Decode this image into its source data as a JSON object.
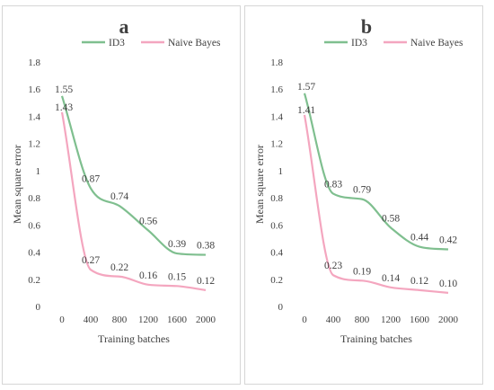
{
  "chart_data": [
    {
      "type": "line",
      "title": "a",
      "xlabel": "Training batches",
      "ylabel": "Mean square error",
      "x": [
        0,
        400,
        800,
        1200,
        1600,
        2000
      ],
      "x_ticks": [
        "0",
        "400",
        "800",
        "1200",
        "1600",
        "2000"
      ],
      "y_ticks": [
        "0",
        "0.2",
        "0.4",
        "0.6",
        "0.8",
        "1",
        "1.2",
        "1.4",
        "1.6",
        "1.8"
      ],
      "ylim": [
        0,
        1.8
      ],
      "grid": false,
      "legend_position": "top",
      "series": [
        {
          "name": "ID3",
          "color": "#7fbf8f",
          "values": [
            1.55,
            0.87,
            0.74,
            0.56,
            0.39,
            0.38
          ],
          "labels": [
            "1.55",
            "0.87",
            "0.74",
            "0.56",
            "0.39",
            "0.38"
          ]
        },
        {
          "name": "Naive Bayes",
          "color": "#f4a6bf",
          "values": [
            1.43,
            0.27,
            0.22,
            0.16,
            0.15,
            0.12
          ],
          "labels": [
            "1.43",
            "0.27",
            "0.22",
            "0.16",
            "0.15",
            "0.12"
          ]
        }
      ]
    },
    {
      "type": "line",
      "title": "b",
      "xlabel": "Training batches",
      "ylabel": "Mean square error",
      "x": [
        0,
        400,
        800,
        1200,
        1600,
        2000
      ],
      "x_ticks": [
        "0",
        "400",
        "800",
        "1200",
        "1600",
        "2000"
      ],
      "y_ticks": [
        "0",
        "0.2",
        "0.4",
        "0.6",
        "0.8",
        "1",
        "1.2",
        "1.4",
        "1.6",
        "1.8"
      ],
      "ylim": [
        0,
        1.8
      ],
      "grid": false,
      "legend_position": "top",
      "series": [
        {
          "name": "ID3",
          "color": "#7fbf8f",
          "values": [
            1.57,
            0.83,
            0.79,
            0.58,
            0.44,
            0.42
          ],
          "labels": [
            "1.57",
            "0.83",
            "0.79",
            "0.58",
            "0.44",
            "0.42"
          ]
        },
        {
          "name": "Naive Bayes",
          "color": "#f4a6bf",
          "values": [
            1.41,
            0.23,
            0.19,
            0.14,
            0.12,
            0.1
          ],
          "labels": [
            "1.41",
            "0.23",
            "0.19",
            "0.14",
            "0.12",
            "0.10"
          ]
        }
      ]
    }
  ]
}
